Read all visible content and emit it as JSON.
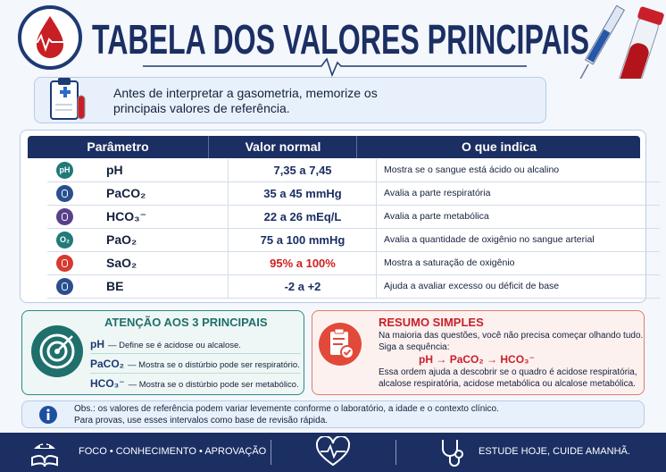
{
  "header": {
    "title": "TABELA DOS VALORES PRINCIPAIS"
  },
  "intro": {
    "lines": [
      "Antes de interpretar a gasometria, memorize os",
      "principais valores de referência."
    ]
  },
  "table": {
    "columns": [
      "Parâmetro",
      "Valor normal",
      "O que indica"
    ],
    "rows": [
      {
        "icon_label": "pH",
        "parameter": "pH",
        "value": "7,35 a 7,45",
        "meaning": "Mostra se o sangue está ácido ou alcalino"
      },
      {
        "parameter": "PaCO₂",
        "value": "35 a 45 mmHg",
        "meaning": "Avalia a parte respiratória"
      },
      {
        "parameter": "HCO₃⁻",
        "value": "22 a 26 mEq/L",
        "meaning": "Avalia a parte metabólica"
      },
      {
        "icon_label": "O₂",
        "parameter": "PaO₂",
        "value": "75 a 100 mmHg",
        "meaning": "Avalia a quantidade de oxigênio no sangue arterial"
      },
      {
        "parameter": "SaO₂",
        "value": "95% a 100%",
        "meaning": "Mostra a saturação de oxigênio"
      },
      {
        "parameter": "BE",
        "value": "-2 a +2",
        "meaning": "Ajuda a avaliar excesso ou déficit de base"
      }
    ]
  },
  "attention": {
    "title": "ATENÇÃO AOS 3 PRINCIPAIS",
    "items": [
      {
        "term": "pH",
        "text": "— Define se é acidose ou alcalose."
      },
      {
        "term": "PaCO₂",
        "text": "— Mostra se o distúrbio pode ser respiratório."
      },
      {
        "term": "HCO₃⁻",
        "text": "— Mostra se o distúrbio pode ser metabólico."
      }
    ]
  },
  "summary": {
    "title": "RESUMO SIMPLES",
    "intro_lines": [
      "Na maioria das questões, você não precisa começar olhando tudo.",
      "Siga a sequência:"
    ],
    "sequence": "pH → PaCO₂ → HCO₃⁻",
    "conclusion_lines": [
      "Essa ordem ajuda a descobrir se o quadro é acidose respiratória,",
      "alcalose respiratória, acidose metabólica ou alcalose metabólica."
    ]
  },
  "note": {
    "lines": [
      "Obs.: os valores de referência podem variar levemente conforme o laboratório, a idade e o contexto clínico.",
      "Para provas, use esses intervalos como base de revisão rápida."
    ]
  },
  "footer": {
    "left": "FOCO • CONHECIMENTO • APROVAÇÃO",
    "right": "ESTUDE HOJE, CUIDE AMANHÃ."
  }
}
